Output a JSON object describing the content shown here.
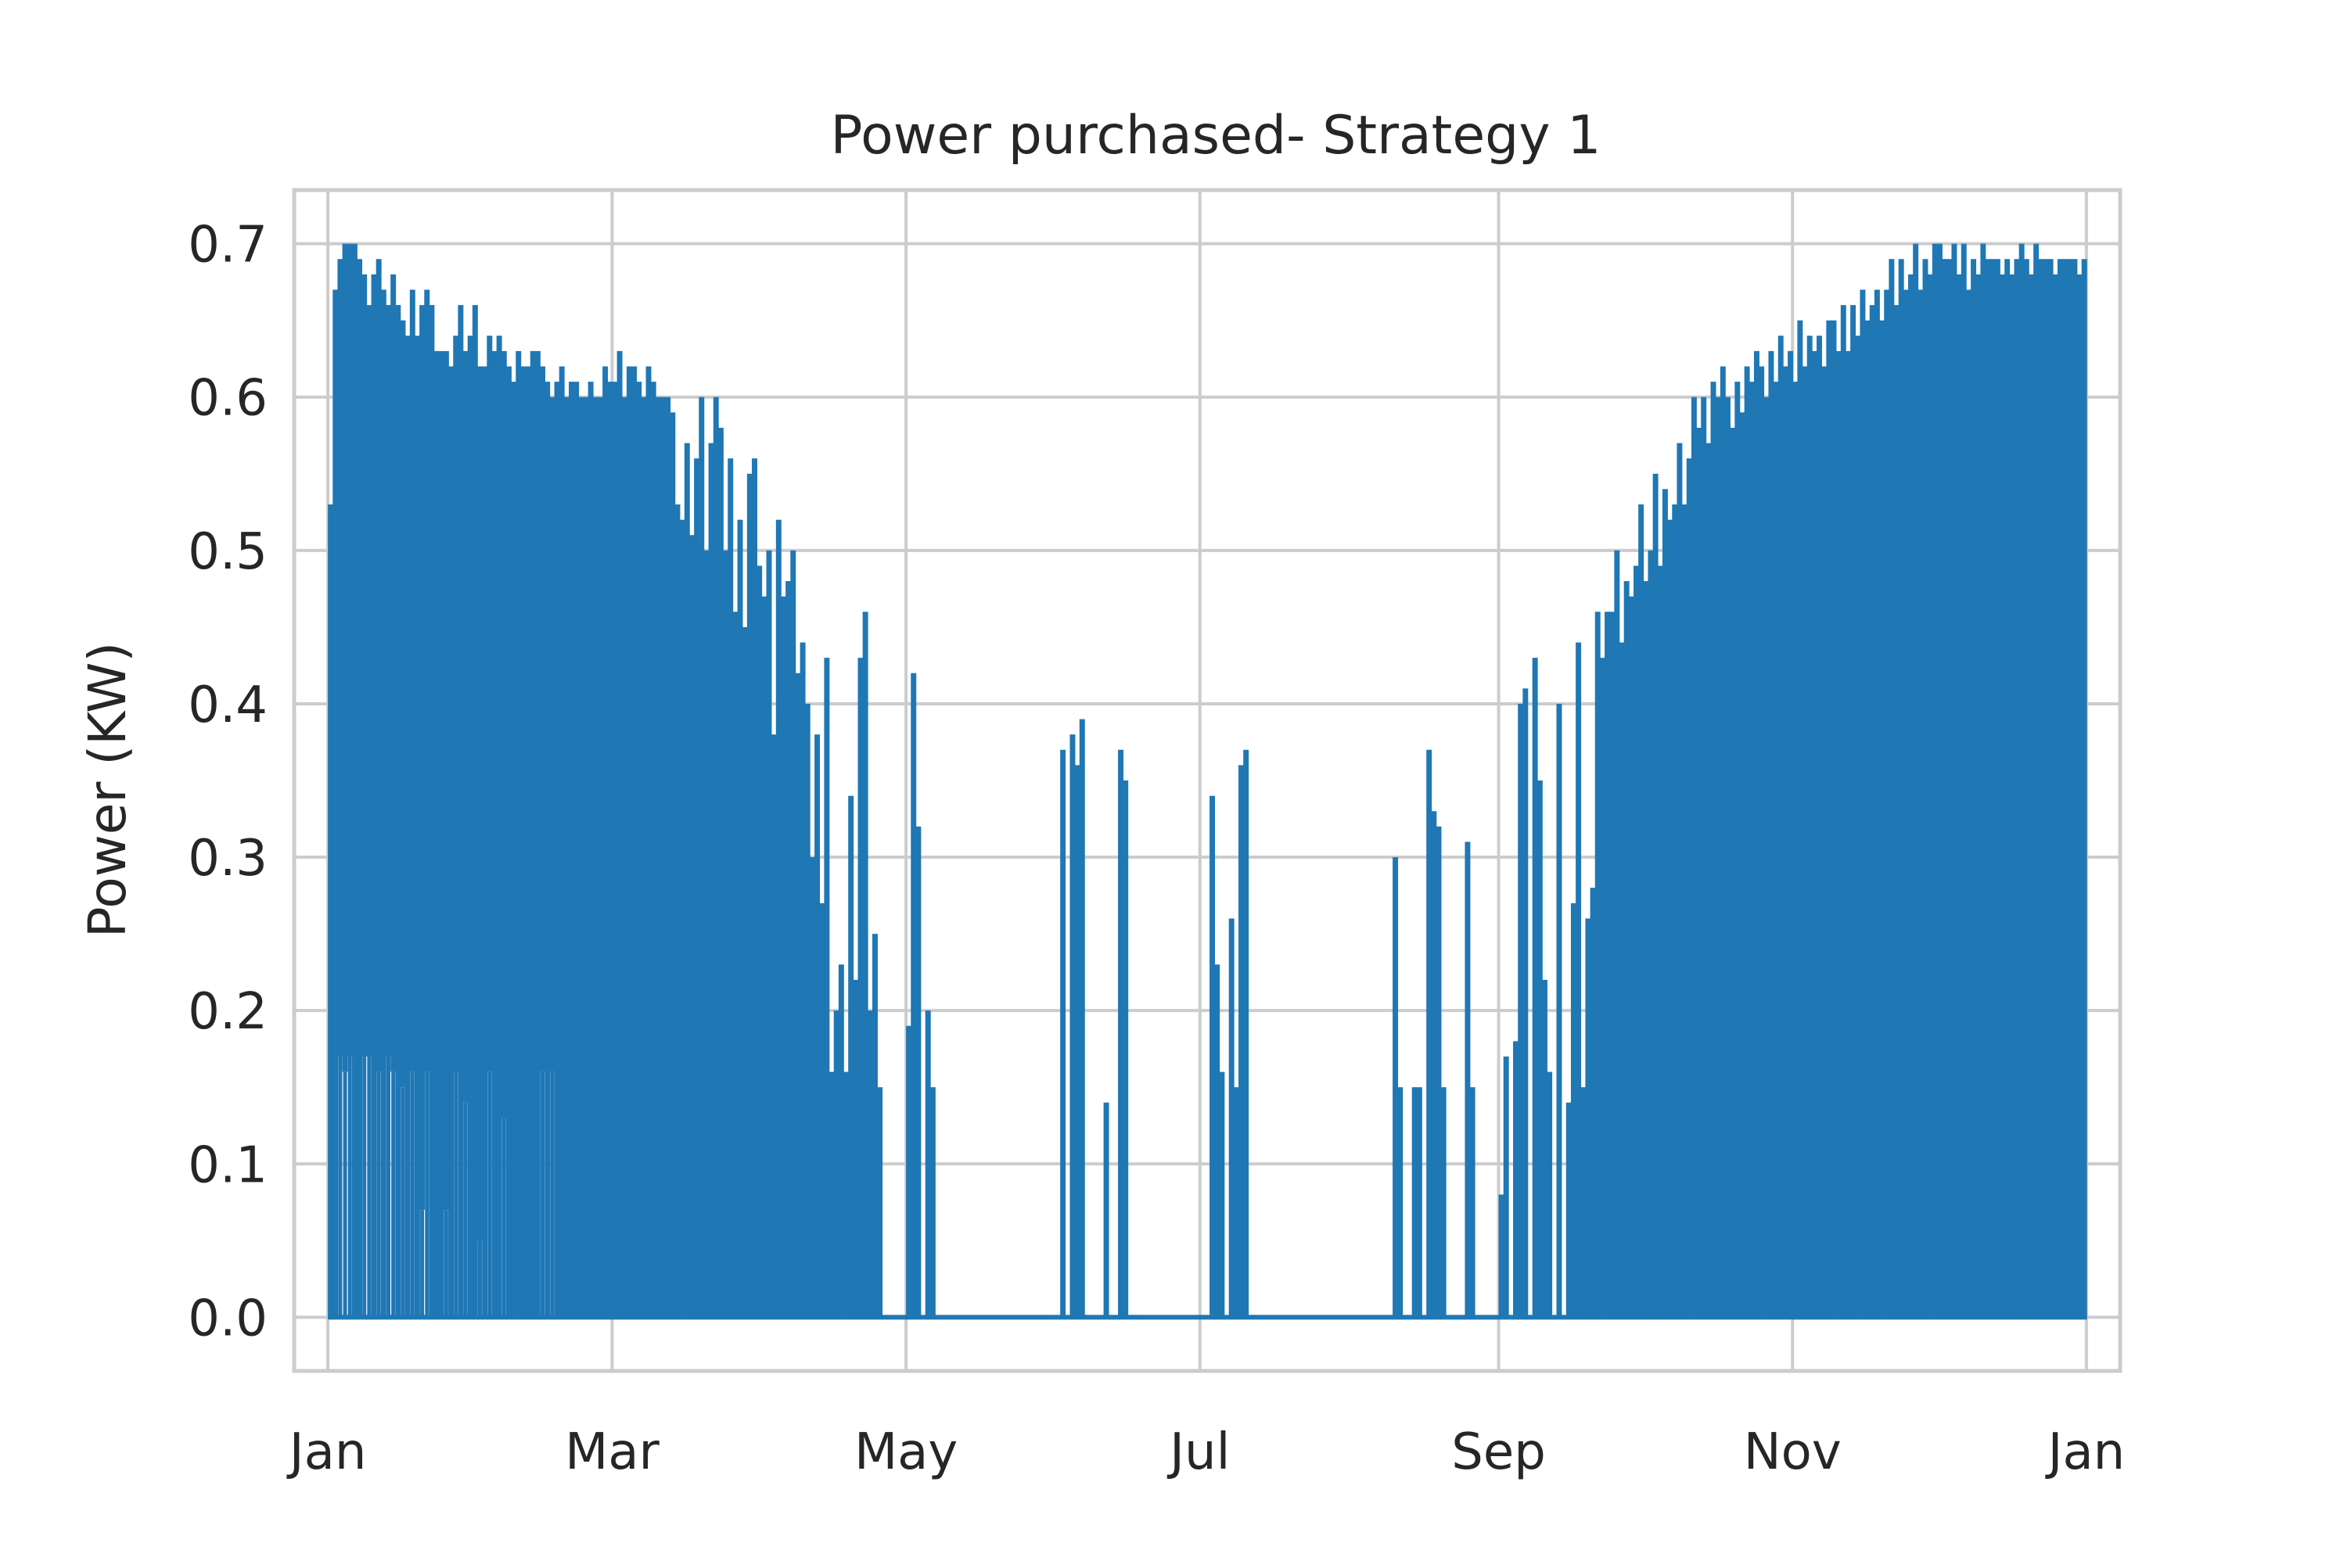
{
  "chart_data": {
    "type": "line",
    "title": "Power purchased- Strategy 1",
    "xlabel": "",
    "ylabel": "Power (KW)",
    "ylim": [
      -0.035,
      0.735
    ],
    "xlim_days": [
      -7,
      372
    ],
    "yticks": [
      0.0,
      0.1,
      0.2,
      0.3,
      0.4,
      0.5,
      0.6,
      0.7
    ],
    "ytick_labels": [
      "0.0",
      "0.1",
      "0.2",
      "0.3",
      "0.4",
      "0.5",
      "0.6",
      "0.7"
    ],
    "xticks_days": [
      0,
      59,
      120,
      181,
      243,
      304,
      365
    ],
    "xtick_labels": [
      "Jan",
      "Mar",
      "May",
      "Jul",
      "Sep",
      "Nov",
      "Jan"
    ],
    "grid": true,
    "series": [
      {
        "name": "Power purchased",
        "color": "#1f77b4",
        "resolution": "hourly, daily peak / trough values shown",
        "daily_peak_values": [
          0.53,
          0.67,
          0.69,
          0.7,
          0.7,
          0.7,
          0.69,
          0.68,
          0.66,
          0.68,
          0.69,
          0.67,
          0.66,
          0.68,
          0.66,
          0.65,
          0.64,
          0.67,
          0.64,
          0.66,
          0.67,
          0.66,
          0.63,
          0.63,
          0.63,
          0.62,
          0.64,
          0.66,
          0.63,
          0.64,
          0.66,
          0.62,
          0.62,
          0.64,
          0.63,
          0.64,
          0.63,
          0.62,
          0.61,
          0.63,
          0.62,
          0.62,
          0.63,
          0.63,
          0.62,
          0.61,
          0.6,
          0.61,
          0.62,
          0.6,
          0.61,
          0.61,
          0.6,
          0.6,
          0.61,
          0.6,
          0.6,
          0.62,
          0.61,
          0.61,
          0.63,
          0.6,
          0.62,
          0.62,
          0.61,
          0.6,
          0.62,
          0.61,
          0.6,
          0.6,
          0.6,
          0.59,
          0.53,
          0.52,
          0.57,
          0.51,
          0.56,
          0.6,
          0.5,
          0.57,
          0.6,
          0.58,
          0.5,
          0.56,
          0.46,
          0.52,
          0.45,
          0.55,
          0.56,
          0.49,
          0.47,
          0.5,
          0.38,
          0.52,
          0.47,
          0.48,
          0.5,
          0.42,
          0.44,
          0.4,
          0.3,
          0.38,
          0.27,
          0.43,
          0.16,
          0.2,
          0.23,
          0.16,
          0.34,
          0.22,
          0.43,
          0.46,
          0.2,
          0.25,
          0.15,
          0.0,
          0.0,
          0.0,
          0.0,
          0.0,
          0.19,
          0.42,
          0.32,
          0.0,
          0.2,
          0.15,
          0.0,
          0.0,
          0.0,
          0.0,
          0.0,
          0.0,
          0.0,
          0.0,
          0.0,
          0.0,
          0.0,
          0.0,
          0.0,
          0.0,
          0.0,
          0.0,
          0.0,
          0.0,
          0.0,
          0.0,
          0.0,
          0.0,
          0.0,
          0.0,
          0.0,
          0.0,
          0.37,
          0.0,
          0.38,
          0.36,
          0.39,
          0.0,
          0.0,
          0.0,
          0.0,
          0.14,
          0.0,
          0.0,
          0.37,
          0.35,
          0.0,
          0.0,
          0.0,
          0.0,
          0.0,
          0.0,
          0.0,
          0.0,
          0.0,
          0.0,
          0.0,
          0.0,
          0.0,
          0.0,
          0.0,
          0.0,
          0.0,
          0.34,
          0.23,
          0.16,
          0.0,
          0.26,
          0.15,
          0.36,
          0.37,
          0.0,
          0.0,
          0.0,
          0.0,
          0.0,
          0.0,
          0.0,
          0.0,
          0.0,
          0.0,
          0.0,
          0.0,
          0.0,
          0.0,
          0.0,
          0.0,
          0.0,
          0.0,
          0.0,
          0.0,
          0.0,
          0.0,
          0.0,
          0.0,
          0.0,
          0.0,
          0.0,
          0.0,
          0.0,
          0.0,
          0.3,
          0.15,
          0.0,
          0.0,
          0.15,
          0.15,
          0.0,
          0.37,
          0.33,
          0.32,
          0.15,
          0.0,
          0.0,
          0.0,
          0.0,
          0.31,
          0.15,
          0.0,
          0.0,
          0.0,
          0.0,
          0.0,
          0.08,
          0.17,
          0.0,
          0.18,
          0.4,
          0.41,
          0.0,
          0.43,
          0.35,
          0.22,
          0.16,
          0.0,
          0.4,
          0.0,
          0.14,
          0.27,
          0.44,
          0.15,
          0.26,
          0.28,
          0.46,
          0.43,
          0.46,
          0.46,
          0.5,
          0.44,
          0.48,
          0.47,
          0.49,
          0.53,
          0.48,
          0.5,
          0.55,
          0.49,
          0.54,
          0.52,
          0.53,
          0.57,
          0.53,
          0.56,
          0.6,
          0.58,
          0.6,
          0.57,
          0.61,
          0.6,
          0.62,
          0.6,
          0.58,
          0.61,
          0.59,
          0.62,
          0.61,
          0.63,
          0.62,
          0.6,
          0.63,
          0.61,
          0.64,
          0.62,
          0.63,
          0.61,
          0.65,
          0.62,
          0.64,
          0.63,
          0.64,
          0.62,
          0.65,
          0.65,
          0.63,
          0.66,
          0.63,
          0.66,
          0.64,
          0.67,
          0.65,
          0.66,
          0.67,
          0.65,
          0.67,
          0.69,
          0.66,
          0.69,
          0.67,
          0.68,
          0.7,
          0.67,
          0.69,
          0.68,
          0.7,
          0.7,
          0.69,
          0.69,
          0.7,
          0.68,
          0.7,
          0.67,
          0.69,
          0.68,
          0.7,
          0.69,
          0.69,
          0.69,
          0.68,
          0.69,
          0.68,
          0.69,
          0.7,
          0.69,
          0.68,
          0.7,
          0.69,
          0.69,
          0.69,
          0.68,
          0.69,
          0.69,
          0.69,
          0.69,
          0.68,
          0.69
        ],
        "daily_trough_values": [
          0.0,
          0.0,
          0.17,
          0.16,
          0.17,
          0.0,
          0.0,
          0.17,
          0.17,
          0.0,
          0.16,
          0.0,
          0.17,
          0.16,
          0.0,
          0.15,
          0.0,
          0.16,
          0.0,
          0.07,
          0.16,
          0.0,
          0.0,
          0.0,
          0.07,
          0.0,
          0.16,
          0.0,
          0.14,
          0.0,
          0.0,
          0.05,
          0.0,
          0.16,
          0.0,
          0.0,
          0.13,
          0.0,
          0.0,
          0.0,
          0.0,
          0.0,
          0.0,
          0.0,
          0.16,
          0.0,
          0.16,
          0.0,
          0.0,
          0.0,
          0.0,
          0.0,
          0.0,
          0.0,
          0.0,
          0.0,
          0.0,
          0.0,
          0.0,
          0.0,
          0.0,
          0.0,
          0.0,
          0.0,
          0.0,
          0.0,
          0.0,
          0.0,
          0.0,
          0.0,
          0.0,
          0.0,
          0.0,
          0.0,
          0.0,
          0.0,
          0.0,
          0.0,
          0.0,
          0.0,
          0.0,
          0.0,
          0.0,
          0.0,
          0.0,
          0.0,
          0.0,
          0.0,
          0.0,
          0.0,
          0.0,
          0.0,
          0.0,
          0.0,
          0.0,
          0.0,
          0.0,
          0.0,
          0.0,
          0.0,
          0.0,
          0.0,
          0.0,
          0.0,
          0.0,
          0.0,
          0.0,
          0.0,
          0.0,
          0.0,
          0.0,
          0.0,
          0.0,
          0.0,
          0.0,
          0.0,
          0.0,
          0.0,
          0.0,
          0.0,
          0.0,
          0.0,
          0.0,
          0.0,
          0.0,
          0.0,
          0.0,
          0.0,
          0.0,
          0.0,
          0.0,
          0.0,
          0.0,
          0.0,
          0.0,
          0.0,
          0.0,
          0.0,
          0.0,
          0.0,
          0.0,
          0.0,
          0.0,
          0.0,
          0.0,
          0.0,
          0.0,
          0.0,
          0.0,
          0.0,
          0.0,
          0.0,
          0.0,
          0.0,
          0.0,
          0.0,
          0.0,
          0.0,
          0.0,
          0.0,
          0.0,
          0.0,
          0.0,
          0.0,
          0.0,
          0.0,
          0.0,
          0.0,
          0.0,
          0.0,
          0.0,
          0.0,
          0.0,
          0.0,
          0.0,
          0.0,
          0.0,
          0.0,
          0.0,
          0.0,
          0.0,
          0.0,
          0.0,
          0.0,
          0.0,
          0.0,
          0.0,
          0.0,
          0.0,
          0.0,
          0.0,
          0.0,
          0.0,
          0.0,
          0.0,
          0.0,
          0.0,
          0.0,
          0.0,
          0.0,
          0.0,
          0.0,
          0.0,
          0.0,
          0.0,
          0.0,
          0.0,
          0.0,
          0.0,
          0.0,
          0.0,
          0.0,
          0.0,
          0.0,
          0.0,
          0.0,
          0.0,
          0.0,
          0.0,
          0.0,
          0.0,
          0.0,
          0.0,
          0.0,
          0.0,
          0.0,
          0.0,
          0.0,
          0.0,
          0.0,
          0.0,
          0.0,
          0.0,
          0.0,
          0.0,
          0.0,
          0.0,
          0.0,
          0.0,
          0.0,
          0.0,
          0.0,
          0.0,
          0.0,
          0.0,
          0.0,
          0.0,
          0.0,
          0.0,
          0.0,
          0.0,
          0.0,
          0.0,
          0.0,
          0.0,
          0.0,
          0.0,
          0.0,
          0.0,
          0.0,
          0.0,
          0.0,
          0.0,
          0.0,
          0.0,
          0.0,
          0.0,
          0.0,
          0.0,
          0.0,
          0.0,
          0.0,
          0.0,
          0.0,
          0.0,
          0.0,
          0.0,
          0.0,
          0.0,
          0.0,
          0.0,
          0.0,
          0.0,
          0.0,
          0.0,
          0.0,
          0.0,
          0.0,
          0.0,
          0.0,
          0.0,
          0.0,
          0.0,
          0.0,
          0.0,
          0.0,
          0.0,
          0.0,
          0.0,
          0.0,
          0.0,
          0.0,
          0.0,
          0.0,
          0.0,
          0.0,
          0.0,
          0.0,
          0.0,
          0.0,
          0.0,
          0.0,
          0.0,
          0.0,
          0.0,
          0.0,
          0.0,
          0.0,
          0.0,
          0.0,
          0.0,
          0.0,
          0.0,
          0.0,
          0.0,
          0.0,
          0.0,
          0.0,
          0.0,
          0.0,
          0.0,
          0.0,
          0.0,
          0.0,
          0.0,
          0.0,
          0.0,
          0.0,
          0.0,
          0.0,
          0.0,
          0.0,
          0.0,
          0.0,
          0.0,
          0.0,
          0.0,
          0.0,
          0.0,
          0.0,
          0.0,
          0.0,
          0.0,
          0.0,
          0.0,
          0.0,
          0.0,
          0.0,
          0.0,
          0.0,
          0.0,
          0.0,
          0.0,
          0.0,
          0.0
        ]
      }
    ]
  }
}
